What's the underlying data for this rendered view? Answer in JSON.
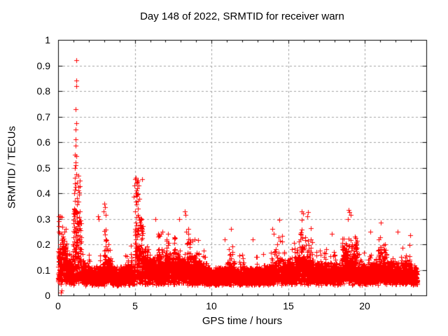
{
  "chart_data": {
    "type": "scatter",
    "title": "Day 148 of 2022, SRMTID for receiver warn",
    "xlabel": "GPS time / hours",
    "ylabel": "SRMTID / TECUs",
    "xlim": [
      0,
      24
    ],
    "ylim": [
      0,
      1
    ],
    "xticks": [
      {
        "v": 0,
        "label": "0"
      },
      {
        "v": 5,
        "label": "5"
      },
      {
        "v": 10,
        "label": "10"
      },
      {
        "v": 15,
        "label": "15"
      },
      {
        "v": 20,
        "label": "20"
      }
    ],
    "x_minor_step": 1,
    "yticks": [
      {
        "v": 0.0,
        "label": "0"
      },
      {
        "v": 0.1,
        "label": "0.1"
      },
      {
        "v": 0.2,
        "label": "0.2"
      },
      {
        "v": 0.3,
        "label": "0.3"
      },
      {
        "v": 0.4,
        "label": "0.4"
      },
      {
        "v": 0.5,
        "label": "0.5"
      },
      {
        "v": 0.6,
        "label": "0.6"
      },
      {
        "v": 0.7,
        "label": "0.7"
      },
      {
        "v": 0.8,
        "label": "0.8"
      },
      {
        "v": 0.9,
        "label": "0.9"
      },
      {
        "v": 1.0,
        "label": "1"
      }
    ],
    "grid": {
      "show": true,
      "color": "#a0a0a0",
      "dash": [
        3,
        3
      ]
    },
    "axis_color": "#000000",
    "text_color": "#000000",
    "marker": {
      "shape": "plus",
      "color": "#ff0000",
      "size": 7
    },
    "series": [
      {
        "name": "SRMTID",
        "t_start": 0.008,
        "t_end": 23.4,
        "cadence_hours": 0.016667,
        "seed": 148,
        "envelope_bins_halfhour": [
          [
            0.0,
            0.15,
            0.31
          ],
          [
            0.5,
            0.12,
            0.3
          ],
          [
            1.0,
            0.22,
            0.47
          ],
          [
            1.5,
            0.1,
            0.23
          ],
          [
            2.0,
            0.09,
            0.22
          ],
          [
            2.5,
            0.09,
            0.2
          ],
          [
            3.0,
            0.12,
            0.36
          ],
          [
            3.5,
            0.08,
            0.18
          ],
          [
            4.0,
            0.09,
            0.22
          ],
          [
            4.5,
            0.1,
            0.28
          ],
          [
            5.0,
            0.2,
            0.46
          ],
          [
            5.5,
            0.13,
            0.3
          ],
          [
            6.0,
            0.12,
            0.28
          ],
          [
            6.5,
            0.13,
            0.3
          ],
          [
            7.0,
            0.13,
            0.28
          ],
          [
            7.5,
            0.13,
            0.3
          ],
          [
            8.0,
            0.12,
            0.33
          ],
          [
            8.5,
            0.11,
            0.28
          ],
          [
            9.0,
            0.1,
            0.26
          ],
          [
            9.5,
            0.09,
            0.2
          ],
          [
            10.0,
            0.08,
            0.16
          ],
          [
            10.5,
            0.09,
            0.22
          ],
          [
            11.0,
            0.1,
            0.26
          ],
          [
            11.5,
            0.09,
            0.22
          ],
          [
            12.0,
            0.09,
            0.2
          ],
          [
            12.5,
            0.09,
            0.22
          ],
          [
            13.0,
            0.09,
            0.22
          ],
          [
            13.5,
            0.1,
            0.25
          ],
          [
            14.0,
            0.1,
            0.29
          ],
          [
            14.5,
            0.1,
            0.3
          ],
          [
            15.0,
            0.11,
            0.3
          ],
          [
            15.5,
            0.12,
            0.33
          ],
          [
            16.0,
            0.12,
            0.33
          ],
          [
            16.5,
            0.1,
            0.25
          ],
          [
            17.0,
            0.1,
            0.25
          ],
          [
            17.5,
            0.1,
            0.24
          ],
          [
            18.0,
            0.1,
            0.22
          ],
          [
            18.5,
            0.14,
            0.33
          ],
          [
            19.0,
            0.13,
            0.33
          ],
          [
            19.5,
            0.1,
            0.22
          ],
          [
            20.0,
            0.1,
            0.25
          ],
          [
            20.5,
            0.11,
            0.28
          ],
          [
            21.0,
            0.11,
            0.28
          ],
          [
            21.5,
            0.11,
            0.25
          ],
          [
            22.0,
            0.1,
            0.25
          ],
          [
            22.5,
            0.1,
            0.24
          ],
          [
            23.0,
            0.09,
            0.21
          ],
          [
            23.5,
            0.08,
            0.15
          ]
        ],
        "outliers": [
          [
            1.19,
            0.92
          ],
          [
            1.19,
            0.84
          ],
          [
            1.18,
            0.82
          ],
          [
            1.14,
            0.73
          ],
          [
            1.18,
            0.675
          ],
          [
            1.15,
            0.65
          ],
          [
            1.13,
            0.61
          ],
          [
            1.16,
            0.585
          ],
          [
            1.1,
            0.55
          ],
          [
            1.17,
            0.545
          ],
          [
            1.12,
            0.52
          ],
          [
            1.16,
            0.51
          ],
          [
            1.1,
            0.5
          ],
          [
            1.2,
            0.475
          ],
          [
            1.08,
            0.46
          ],
          [
            1.22,
            0.44
          ],
          [
            1.12,
            0.425
          ],
          [
            1.05,
            0.4
          ],
          [
            1.25,
            0.38
          ],
          [
            1.09,
            0.37
          ],
          [
            1.21,
            0.355
          ],
          [
            1.07,
            0.34
          ],
          [
            1.24,
            0.325
          ],
          [
            1.03,
            0.31
          ],
          [
            5.05,
            0.46
          ],
          [
            5.02,
            0.455
          ],
          [
            5.1,
            0.44
          ],
          [
            4.97,
            0.43
          ],
          [
            5.15,
            0.42
          ],
          [
            5.08,
            0.4
          ],
          [
            4.93,
            0.385
          ],
          [
            5.2,
            0.37
          ],
          [
            5.12,
            0.355
          ],
          [
            5.18,
            0.34
          ],
          [
            5.0,
            0.33
          ],
          [
            5.22,
            0.315
          ],
          [
            3.02,
            0.36
          ],
          [
            3.06,
            0.345
          ],
          [
            2.98,
            0.33
          ],
          [
            3.1,
            0.315
          ],
          [
            2.62,
            0.31
          ],
          [
            2.66,
            0.3
          ],
          [
            8.28,
            0.33
          ],
          [
            8.32,
            0.315
          ],
          [
            15.9,
            0.33
          ],
          [
            15.95,
            0.32
          ],
          [
            16.3,
            0.325
          ],
          [
            16.25,
            0.31
          ],
          [
            18.95,
            0.335
          ],
          [
            19.0,
            0.325
          ],
          [
            19.05,
            0.315
          ],
          [
            18.9,
            0.3
          ],
          [
            0.03,
            0.31
          ],
          [
            0.05,
            0.29
          ],
          [
            0.04,
            0.27
          ],
          [
            0.06,
            0.25
          ],
          [
            21.05,
            0.285
          ],
          [
            14.4,
            0.295
          ],
          [
            6.35,
            0.3
          ],
          [
            7.9,
            0.3
          ],
          [
            5.45,
            0.3
          ],
          [
            13.95,
            0.26
          ],
          [
            11.25,
            0.26
          ],
          [
            22.15,
            0.25
          ],
          [
            20.35,
            0.25
          ],
          [
            17.85,
            0.24
          ],
          [
            22.95,
            0.235
          ],
          [
            10.85,
            0.22
          ],
          [
            12.7,
            0.22
          ],
          [
            0.17,
            0.012
          ],
          [
            0.22,
            0.018
          ]
        ]
      }
    ]
  }
}
